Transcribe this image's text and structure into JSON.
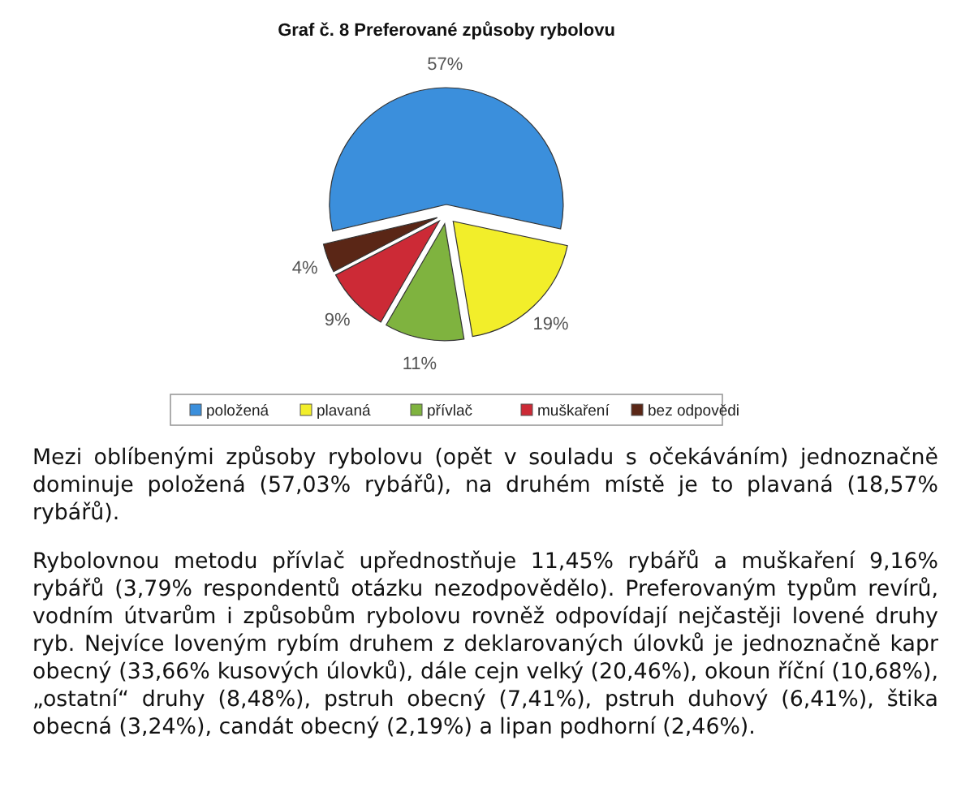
{
  "chart_data": {
    "type": "pie",
    "title": "Graf č. 8 Preferované způsoby rybolovu",
    "categories": [
      "položená",
      "plavaná",
      "přívlač",
      "muškaření",
      "bez odpovědi"
    ],
    "values": [
      57,
      19,
      11,
      9,
      4
    ],
    "value_labels": [
      "57%",
      "19%",
      "11%",
      "9%",
      "4%"
    ],
    "colors": [
      "#3b8fdc",
      "#f2ee2a",
      "#7fb33f",
      "#cc2a36",
      "#5a2616"
    ],
    "legend": "bottom",
    "annotations": [
      "Mezi oblíbenými způsoby rybolovu (opět v souladu s očekáváním) jednoznačně dominuje položená (57,03% rybářů), na druhém místě je to plavaná (18,57% rybářů).",
      "Rybolovnou metodu přívlač upřednostňuje 11,45% rybářů a muškaření 9,16% rybářů (3,79% respondentů otázku nezodpovědělo). Preferovaným typům revírů, vodním útvarům i způsobům rybolovu rovněž odpovídají nejčastěji lovené druhy ryb. Nejvíce loveným rybím druhem z deklarovaných úlovků je jednoznačně kapr obecný (33,66% kusových úlovků), dále cejn velký (20,46%), okoun říční (10,68%), „ostatní“ druhy (8,48%), pstruh obecný (7,41%), pstruh duhový (6,41%), štika obecná (3,24%), candát obecný (2,19%) a lipan podhorní (2,46%)."
    ]
  }
}
